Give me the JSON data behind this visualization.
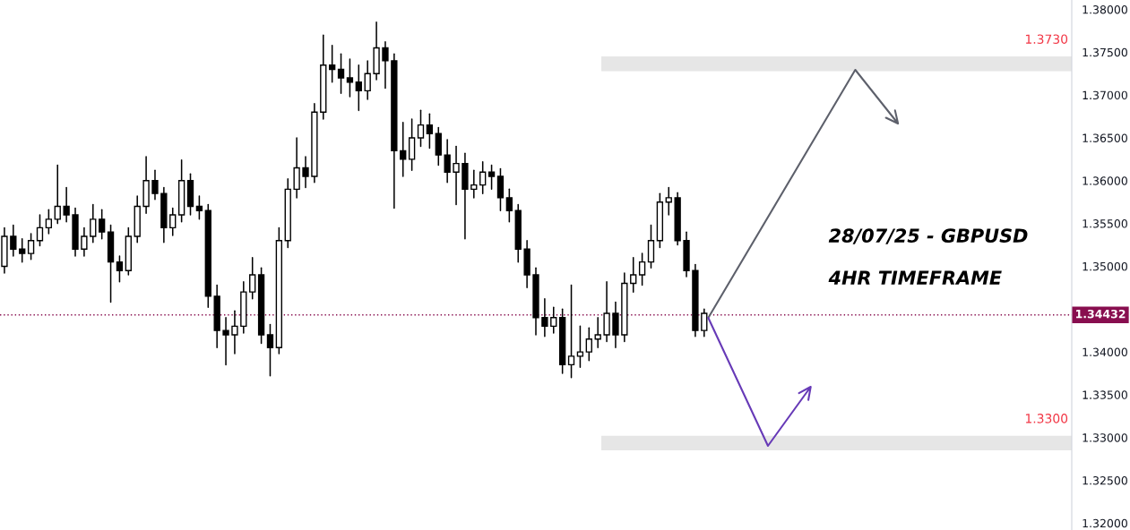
{
  "chart_data": {
    "type": "candlestick",
    "categories": [
      null,
      null,
      null,
      null,
      null,
      null,
      null,
      null,
      null,
      null,
      null,
      null,
      null,
      null,
      null,
      null,
      null,
      null,
      null,
      null,
      null,
      null,
      null,
      null,
      null,
      null,
      null,
      null,
      null,
      null,
      null,
      null,
      null,
      null,
      null,
      null,
      null,
      null,
      null,
      null,
      null,
      null,
      null,
      null,
      null,
      null,
      null,
      null,
      null,
      null,
      null,
      null,
      null,
      null,
      null,
      null,
      null,
      null,
      null,
      null,
      null,
      null,
      null,
      null,
      null,
      null,
      null,
      null,
      null,
      null,
      null,
      null,
      null,
      null,
      null,
      null,
      null,
      null,
      null,
      null,
      null,
      null,
      null,
      null,
      null,
      null,
      null,
      null,
      null,
      null,
      null,
      null,
      null,
      null,
      null,
      null,
      null,
      null,
      null,
      null,
      null,
      null,
      null,
      null,
      null,
      null,
      null,
      null,
      null,
      null,
      null,
      null,
      null,
      null,
      null,
      null,
      null,
      null,
      null,
      null,
      null
    ],
    "ohlc": [
      [
        1.35,
        1.3545,
        1.3492,
        1.3535
      ],
      [
        1.3535,
        1.3548,
        1.3512,
        1.352
      ],
      [
        1.352,
        1.3532,
        1.3505,
        1.3515
      ],
      [
        1.3515,
        1.3538,
        1.3508,
        1.353
      ],
      [
        1.353,
        1.356,
        1.3524,
        1.3545
      ],
      [
        1.3545,
        1.3566,
        1.3538,
        1.3555
      ],
      [
        1.3555,
        1.3618,
        1.355,
        1.357
      ],
      [
        1.357,
        1.3592,
        1.3552,
        1.356
      ],
      [
        1.356,
        1.3568,
        1.3512,
        1.352
      ],
      [
        1.352,
        1.3545,
        1.3512,
        1.3535
      ],
      [
        1.3535,
        1.3572,
        1.3528,
        1.3555
      ],
      [
        1.3555,
        1.3566,
        1.3532,
        1.354
      ],
      [
        1.354,
        1.3548,
        1.3458,
        1.3505
      ],
      [
        1.3505,
        1.3512,
        1.3482,
        1.3495
      ],
      [
        1.3495,
        1.3545,
        1.349,
        1.3535
      ],
      [
        1.3535,
        1.3582,
        1.3528,
        1.357
      ],
      [
        1.357,
        1.3628,
        1.3562,
        1.36
      ],
      [
        1.36,
        1.3612,
        1.3578,
        1.3585
      ],
      [
        1.3585,
        1.3592,
        1.3528,
        1.3545
      ],
      [
        1.3545,
        1.3568,
        1.3536,
        1.356
      ],
      [
        1.356,
        1.3624,
        1.3552,
        1.36
      ],
      [
        1.36,
        1.3608,
        1.356,
        1.357
      ],
      [
        1.357,
        1.3582,
        1.3555,
        1.3565
      ],
      [
        1.3565,
        1.3572,
        1.3452,
        1.3465
      ],
      [
        1.3465,
        1.3478,
        1.3405,
        1.3425
      ],
      [
        1.3425,
        1.344,
        1.3385,
        1.342
      ],
      [
        1.342,
        1.3448,
        1.3398,
        1.343
      ],
      [
        1.343,
        1.3482,
        1.3422,
        1.347
      ],
      [
        1.347,
        1.351,
        1.3462,
        1.349
      ],
      [
        1.349,
        1.3498,
        1.341,
        1.342
      ],
      [
        1.342,
        1.3432,
        1.3372,
        1.3405
      ],
      [
        1.3405,
        1.3545,
        1.3398,
        1.353
      ],
      [
        1.353,
        1.3602,
        1.3522,
        1.359
      ],
      [
        1.359,
        1.365,
        1.358,
        1.3615
      ],
      [
        1.3615,
        1.3628,
        1.3592,
        1.3605
      ],
      [
        1.3605,
        1.369,
        1.3598,
        1.368
      ],
      [
        1.368,
        1.377,
        1.3672,
        1.3735
      ],
      [
        1.3735,
        1.3758,
        1.3715,
        1.373
      ],
      [
        1.373,
        1.3748,
        1.3702,
        1.372
      ],
      [
        1.372,
        1.3742,
        1.3698,
        1.3715
      ],
      [
        1.3715,
        1.3735,
        1.3682,
        1.3705
      ],
      [
        1.3705,
        1.374,
        1.3695,
        1.3725
      ],
      [
        1.3725,
        1.3785,
        1.3718,
        1.3755
      ],
      [
        1.3755,
        1.3762,
        1.3708,
        1.374
      ],
      [
        1.374,
        1.3748,
        1.3568,
        1.3635
      ],
      [
        1.3635,
        1.3668,
        1.3605,
        1.3625
      ],
      [
        1.3625,
        1.3672,
        1.3612,
        1.365
      ],
      [
        1.365,
        1.3682,
        1.364,
        1.3665
      ],
      [
        1.3665,
        1.3678,
        1.3638,
        1.3655
      ],
      [
        1.3655,
        1.3662,
        1.3618,
        1.363
      ],
      [
        1.363,
        1.3648,
        1.3598,
        1.361
      ],
      [
        1.361,
        1.364,
        1.3572,
        1.362
      ],
      [
        1.362,
        1.3632,
        1.3532,
        1.359
      ],
      [
        1.359,
        1.3612,
        1.358,
        1.3595
      ],
      [
        1.3595,
        1.3622,
        1.3585,
        1.361
      ],
      [
        1.361,
        1.3618,
        1.359,
        1.3605
      ],
      [
        1.3605,
        1.3614,
        1.3565,
        1.358
      ],
      [
        1.358,
        1.359,
        1.3552,
        1.3565
      ],
      [
        1.3565,
        1.3572,
        1.3505,
        1.352
      ],
      [
        1.352,
        1.353,
        1.3475,
        1.349
      ],
      [
        1.349,
        1.3498,
        1.342,
        1.344
      ],
      [
        1.344,
        1.3462,
        1.3418,
        1.343
      ],
      [
        1.343,
        1.3452,
        1.3422,
        1.344
      ],
      [
        1.344,
        1.345,
        1.3375,
        1.3385
      ],
      [
        1.3385,
        1.3478,
        1.337,
        1.3395
      ],
      [
        1.3395,
        1.343,
        1.3382,
        1.34
      ],
      [
        1.34,
        1.3428,
        1.339,
        1.3415
      ],
      [
        1.3415,
        1.344,
        1.3405,
        1.342
      ],
      [
        1.342,
        1.3482,
        1.3412,
        1.3445
      ],
      [
        1.3445,
        1.3458,
        1.3405,
        1.342
      ],
      [
        1.342,
        1.3492,
        1.3412,
        1.348
      ],
      [
        1.348,
        1.351,
        1.347,
        1.349
      ],
      [
        1.349,
        1.3515,
        1.3478,
        1.3505
      ],
      [
        1.3505,
        1.3548,
        1.3498,
        1.353
      ],
      [
        1.353,
        1.3585,
        1.3522,
        1.3575
      ],
      [
        1.3575,
        1.3592,
        1.356,
        1.358
      ],
      [
        1.358,
        1.3586,
        1.3525,
        1.353
      ],
      [
        1.353,
        1.354,
        1.3488,
        1.3495
      ],
      [
        1.3495,
        1.3502,
        1.3418,
        1.3425
      ],
      [
        1.3425,
        1.345,
        1.3418,
        1.3445
      ],
      null,
      null,
      null,
      null,
      null,
      null,
      null,
      null,
      null,
      null,
      null,
      null,
      null,
      null,
      null,
      null,
      null,
      null,
      null,
      null,
      null,
      null,
      null,
      null,
      null,
      null,
      null,
      null,
      null,
      null,
      null,
      null,
      null,
      null,
      null,
      null,
      null,
      null,
      null,
      null,
      null
    ],
    "ylim": [
      1.3192,
      1.3811
    ],
    "yticks": [
      {
        "value": 1.32,
        "label": "1.32000"
      },
      {
        "value": 1.325,
        "label": "1.32500"
      },
      {
        "value": 1.33,
        "label": "1.33000"
      },
      {
        "value": 1.335,
        "label": "1.33500"
      },
      {
        "value": 1.34,
        "label": "1.34000"
      },
      {
        "value": 1.35,
        "label": "1.35000"
      },
      {
        "value": 1.355,
        "label": "1.35500"
      },
      {
        "value": 1.36,
        "label": "1.36000"
      },
      {
        "value": 1.365,
        "label": "1.36500"
      },
      {
        "value": 1.37,
        "label": "1.37000"
      },
      {
        "value": 1.375,
        "label": "1.37500"
      },
      {
        "value": 1.38,
        "label": "1.38000"
      }
    ],
    "ref_lines": [
      {
        "axis": "y",
        "value": 1.34432,
        "label": "1.34432",
        "color": "#880e4f",
        "line_style": "dotted"
      }
    ],
    "bands": [
      {
        "axis": "y",
        "from": 1.3728,
        "to": 1.3745,
        "label": "1.3730",
        "color": "#e6e6e6"
      },
      {
        "axis": "y",
        "from": 1.3285,
        "to": 1.3302,
        "label": "1.3300",
        "color": "#e6e6e6"
      }
    ],
    "annotations": [
      "28/07/25 - GBPUSD",
      "4HR TIMEFRAME"
    ],
    "tick_labels": "y",
    "grid": false,
    "legend": false
  }
}
